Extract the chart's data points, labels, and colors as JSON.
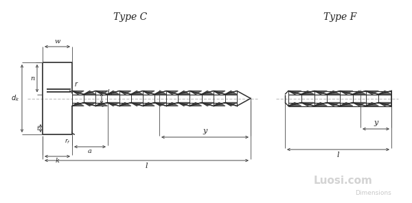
{
  "bg_color": "#ffffff",
  "line_color": "#2a2a2a",
  "dim_color": "#444444",
  "text_color": "#222222",
  "watermark_color": "#c8c8c8",
  "title_C": "Type C",
  "title_F": "Type F",
  "watermark": "Luosi.com",
  "dim_label": "Dimensions",
  "figsize": [
    6.0,
    2.96
  ],
  "dpi": 100
}
